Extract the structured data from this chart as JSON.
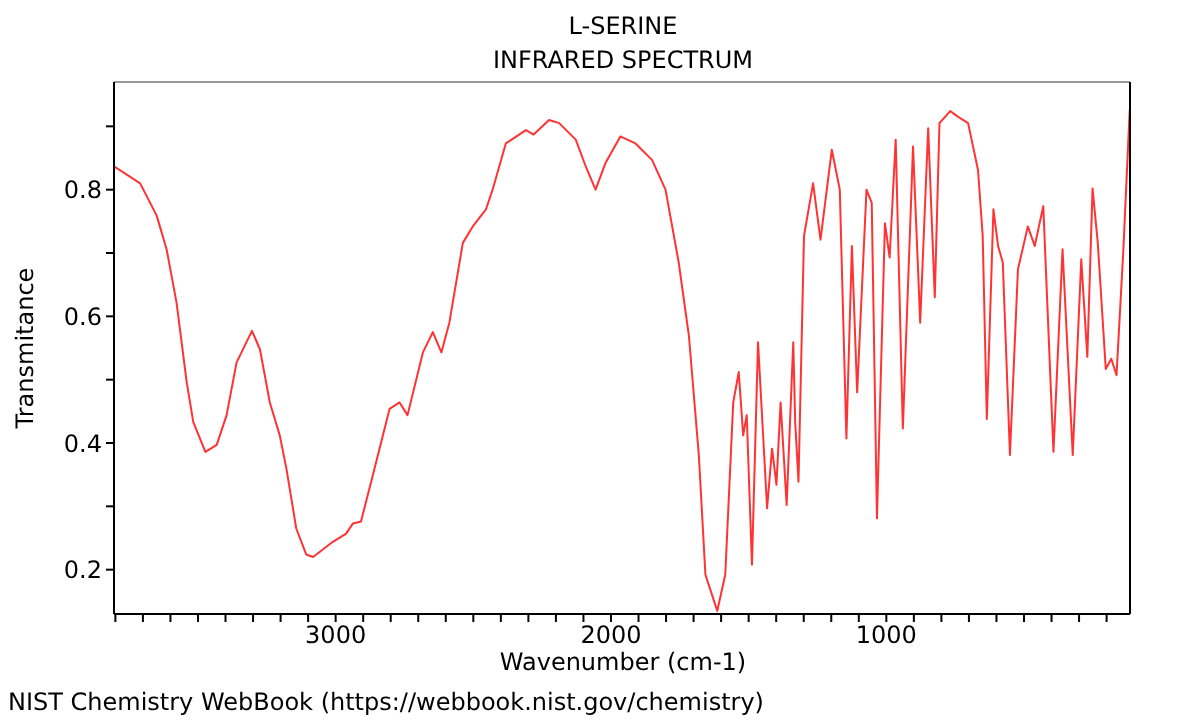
{
  "chart_data": {
    "type": "line",
    "title": "L-SERINE",
    "subtitle": "INFRARED SPECTRUM",
    "xlabel": "Wavenumber (cm-1)",
    "ylabel": "Transmitance",
    "annotations": [
      "NIST Chemistry WebBook (https://webbook.nist.gov/chemistry)"
    ],
    "xlim": [
      3805,
      115
    ],
    "ylim": [
      0.13,
      0.97
    ],
    "xticks": [
      {
        "value": 200,
        "label": null
      },
      {
        "value": 300,
        "label": null
      },
      {
        "value": 400,
        "label": null
      },
      {
        "value": 500,
        "label": null
      },
      {
        "value": 600,
        "label": null
      },
      {
        "value": 700,
        "label": null
      },
      {
        "value": 800,
        "label": null
      },
      {
        "value": 900,
        "label": null
      },
      1000,
      {
        "value": 1100,
        "label": null
      },
      {
        "value": 1200,
        "label": null
      },
      {
        "value": 1300,
        "label": null
      },
      {
        "value": 1400,
        "label": null
      },
      {
        "value": 1500,
        "label": null
      },
      {
        "value": 1600,
        "label": null
      },
      {
        "value": 1700,
        "label": null
      },
      {
        "value": 1800,
        "label": null
      },
      {
        "value": 1900,
        "label": null
      },
      2000,
      {
        "value": 2100,
        "label": null
      },
      {
        "value": 2200,
        "label": null
      },
      {
        "value": 2300,
        "label": null
      },
      {
        "value": 2400,
        "label": null
      },
      {
        "value": 2500,
        "label": null
      },
      {
        "value": 2600,
        "label": null
      },
      {
        "value": 2700,
        "label": null
      },
      {
        "value": 2800,
        "label": null
      },
      {
        "value": 2900,
        "label": null
      },
      3000,
      {
        "value": 3100,
        "label": null
      },
      {
        "value": 3200,
        "label": null
      },
      {
        "value": 3300,
        "label": null
      },
      {
        "value": 3400,
        "label": null
      },
      {
        "value": 3500,
        "label": null
      },
      {
        "value": 3600,
        "label": null
      },
      {
        "value": 3700,
        "label": null
      },
      {
        "value": 3800,
        "label": null
      }
    ],
    "yticks": [
      0.2,
      {
        "value": 0.3,
        "label": null
      },
      0.4,
      {
        "value": 0.5,
        "label": null
      },
      0.6,
      {
        "value": 0.7,
        "label": null
      },
      0.8,
      {
        "value": 0.9,
        "label": null
      }
    ],
    "legend": false,
    "marker": "none",
    "line_style": "solid",
    "series": [
      {
        "color": "#ff3333",
        "x": [
          3805,
          3710,
          3650,
          3614,
          3578,
          3541,
          3517,
          3473,
          3432,
          3396,
          3360,
          3304,
          3275,
          3239,
          3203,
          3179,
          3143,
          3107,
          3082,
          3010,
          2962,
          2937,
          2908,
          2865,
          2804,
          2768,
          2739,
          2683,
          2647,
          2616,
          2587,
          2538,
          2502,
          2454,
          2430,
          2382,
          2309,
          2281,
          2225,
          2188,
          2128,
          2092,
          2056,
          2020,
          1966,
          1911,
          1851,
          1802,
          1754,
          1717,
          1681,
          1657,
          1614,
          1585,
          1556,
          1536,
          1520,
          1507,
          1488,
          1466,
          1433,
          1415,
          1399,
          1384,
          1362,
          1338,
          1331,
          1319,
          1299,
          1266,
          1239,
          1198,
          1169,
          1145,
          1125,
          1106,
          1072,
          1053,
          1034,
          1005,
          988,
          966,
          940,
          903,
          877,
          848,
          824,
          807,
          768,
          739,
          703,
          667,
          650,
          635,
          611,
          594,
          577,
          551,
          522,
          486,
          461,
          430,
          393,
          360,
          323,
          292,
          270,
          251,
          232,
          203,
          183,
          164,
          139,
          116
        ],
        "values": [
          0.837,
          0.81,
          0.759,
          0.706,
          0.622,
          0.496,
          0.433,
          0.386,
          0.397,
          0.444,
          0.527,
          0.577,
          0.548,
          0.464,
          0.412,
          0.36,
          0.265,
          0.224,
          0.22,
          0.244,
          0.257,
          0.273,
          0.276,
          0.349,
          0.454,
          0.464,
          0.444,
          0.543,
          0.575,
          0.543,
          0.59,
          0.716,
          0.742,
          0.769,
          0.8,
          0.873,
          0.894,
          0.887,
          0.91,
          0.905,
          0.879,
          0.837,
          0.8,
          0.842,
          0.884,
          0.873,
          0.847,
          0.8,
          0.685,
          0.569,
          0.381,
          0.192,
          0.135,
          0.192,
          0.464,
          0.512,
          0.412,
          0.444,
          0.208,
          0.559,
          0.297,
          0.391,
          0.334,
          0.464,
          0.302,
          0.559,
          0.433,
          0.339,
          0.727,
          0.81,
          0.721,
          0.863,
          0.8,
          0.407,
          0.711,
          0.48,
          0.8,
          0.779,
          0.281,
          0.747,
          0.693,
          0.879,
          0.423,
          0.868,
          0.59,
          0.897,
          0.63,
          0.905,
          0.924,
          0.915,
          0.905,
          0.831,
          0.727,
          0.438,
          0.769,
          0.711,
          0.685,
          0.381,
          0.674,
          0.742,
          0.711,
          0.774,
          0.386,
          0.706,
          0.381,
          0.69,
          0.536,
          0.802,
          0.716,
          0.517,
          0.533,
          0.507,
          0.706,
          0.926
        ]
      }
    ]
  }
}
